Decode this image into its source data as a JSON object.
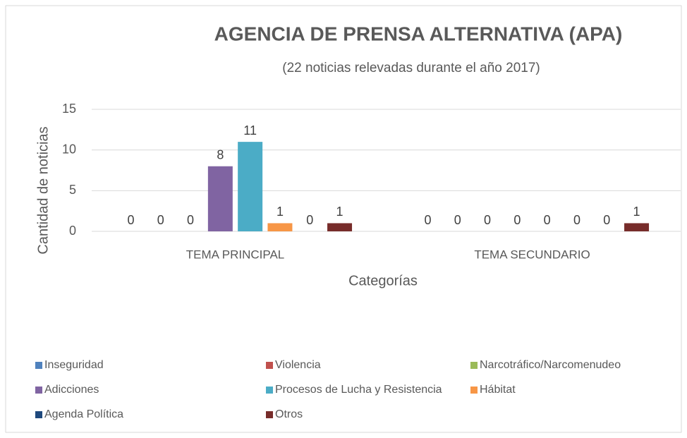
{
  "chart_data": {
    "type": "bar",
    "title": "AGENCIA DE PRENSA ALTERNATIVA (APA)",
    "subtitle": "(22 noticias relevadas durante el año 2017)",
    "x_label": "Categorías",
    "y_label": "Cantidad de noticias",
    "categories": [
      "TEMA PRINCIPAL",
      "TEMA SECUNDARIO"
    ],
    "series": [
      {
        "name": "Inseguridad",
        "color": "#4f81bd",
        "values": [
          0,
          0
        ]
      },
      {
        "name": "Violencia",
        "color": "#c0504d",
        "values": [
          0,
          0
        ]
      },
      {
        "name": "Narcotráfico/Narcomenudeo",
        "color": "#9bbb59",
        "values": [
          0,
          0
        ]
      },
      {
        "name": "Adicciones",
        "color": "#8064a2",
        "values": [
          8,
          0
        ]
      },
      {
        "name": "Procesos de Lucha y Resistencia",
        "color": "#4bacc6",
        "values": [
          11,
          0
        ]
      },
      {
        "name": "Hábitat",
        "color": "#f79646",
        "values": [
          1,
          0
        ]
      },
      {
        "name": "Agenda Política",
        "color": "#1f497d",
        "values": [
          0,
          0
        ]
      },
      {
        "name": "Otros",
        "color": "#772c2a",
        "values": [
          1,
          1
        ]
      }
    ],
    "ylim": [
      0,
      15
    ],
    "yticks": [
      0,
      5,
      10,
      15
    ],
    "grid": true,
    "legend": "bottom"
  }
}
